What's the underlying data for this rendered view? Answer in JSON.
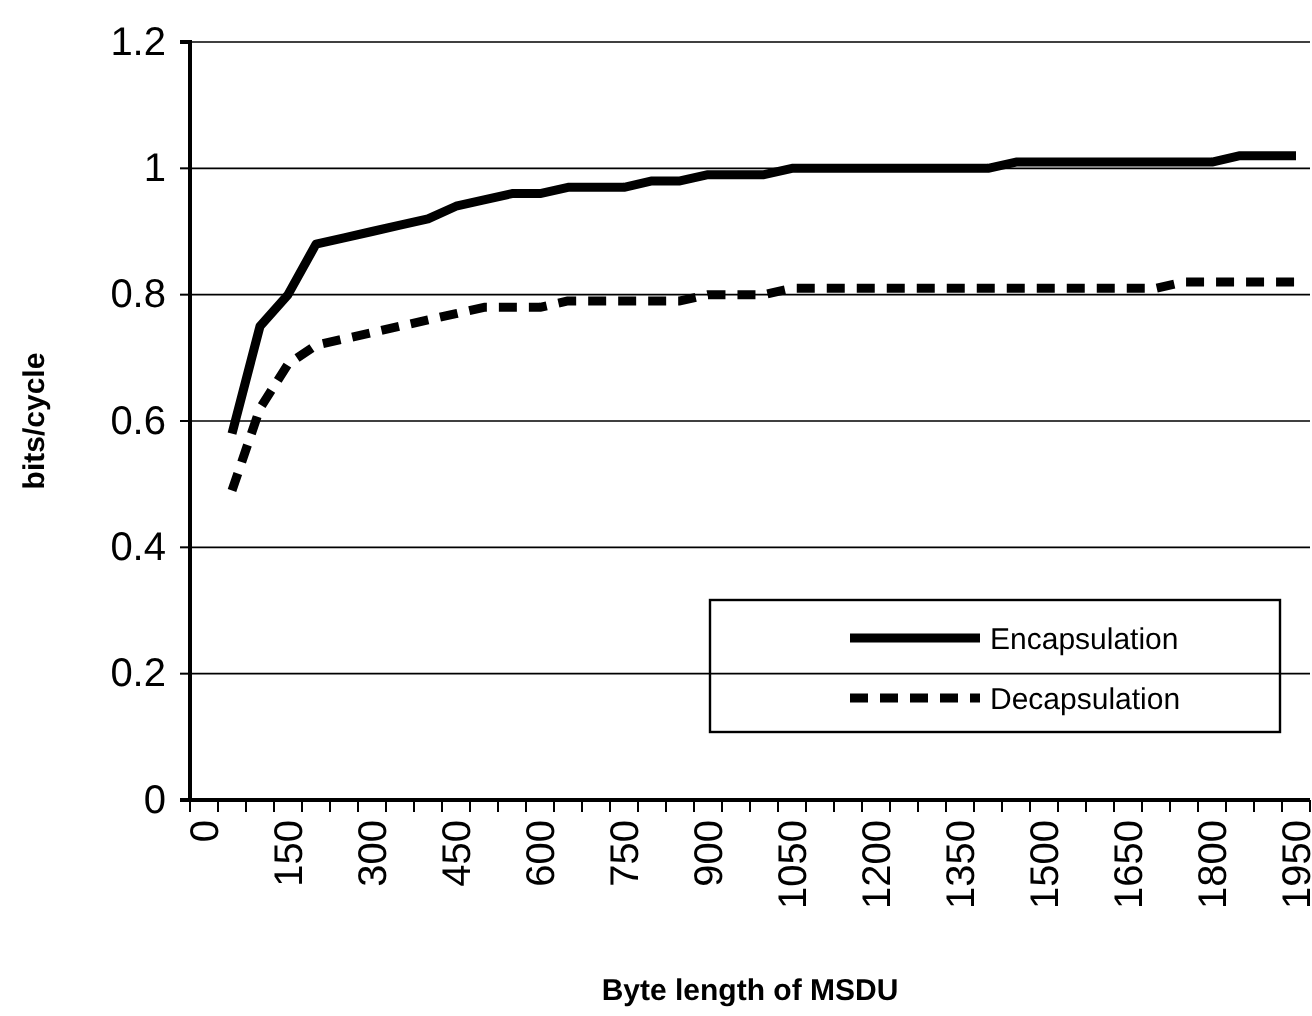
{
  "chart_data": {
    "type": "line",
    "xlabel": "Byte length of MSDU",
    "ylabel": "bits/cycle",
    "categories": [
      "0",
      null,
      null,
      "150",
      null,
      null,
      "300",
      null,
      null,
      "450",
      null,
      null,
      "600",
      null,
      null,
      "750",
      null,
      null,
      "900",
      null,
      null,
      "1050",
      null,
      null,
      "1200",
      null,
      null,
      "1350",
      null,
      null,
      "1500",
      null,
      null,
      "1650",
      null,
      null,
      "1800",
      null,
      null,
      "1950"
    ],
    "series": [
      {
        "name": "Encapsulation",
        "color": "#000000",
        "line_style": "solid",
        "values": [
          null,
          0.58,
          0.75,
          0.8,
          0.88,
          0.89,
          0.9,
          0.91,
          0.92,
          0.94,
          0.95,
          0.96,
          0.96,
          0.97,
          0.97,
          0.97,
          0.98,
          0.98,
          0.99,
          0.99,
          0.99,
          1.0,
          1.0,
          1.0,
          1.0,
          1.0,
          1.0,
          1.0,
          1.0,
          1.01,
          1.01,
          1.01,
          1.01,
          1.01,
          1.01,
          1.01,
          1.01,
          1.02,
          1.02,
          1.02
        ]
      },
      {
        "name": "Decapsulation",
        "color": "#000000",
        "line_style": "dashed",
        "values": [
          null,
          0.49,
          0.62,
          0.69,
          0.72,
          0.73,
          0.74,
          0.75,
          0.76,
          0.77,
          0.78,
          0.78,
          0.78,
          0.79,
          0.79,
          0.79,
          0.79,
          0.79,
          0.8,
          0.8,
          0.8,
          0.81,
          0.81,
          0.81,
          0.81,
          0.81,
          0.81,
          0.81,
          0.81,
          0.81,
          0.81,
          0.81,
          0.81,
          0.81,
          0.81,
          0.82,
          0.82,
          0.82,
          0.82,
          0.82
        ]
      }
    ],
    "ylim": [
      0,
      1.2
    ],
    "yticks": [
      0,
      0.2,
      0.4,
      0.6,
      0.8,
      1,
      1.2
    ],
    "grid": "y",
    "legend": "bottom right",
    "marker": "none"
  }
}
